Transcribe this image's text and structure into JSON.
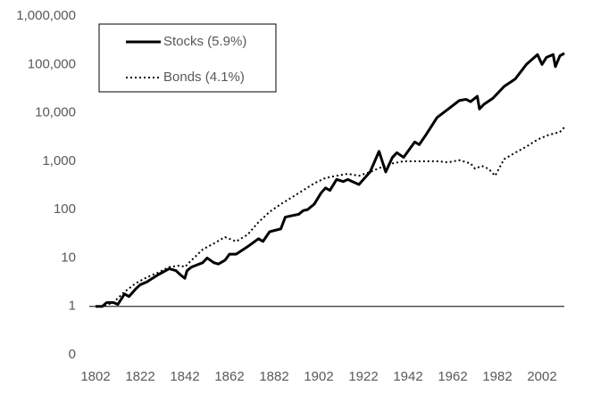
{
  "chart_data": {
    "type": "line",
    "log_scale": true,
    "xaxis_crosses": 1,
    "xlim": [
      1802,
      2012
    ],
    "xticks": [
      1802,
      1822,
      1842,
      1862,
      1882,
      1902,
      1922,
      1942,
      1962,
      1982,
      2002
    ],
    "ylim": [
      0.1,
      1000000
    ],
    "yticks": [
      {
        "value": 0.1,
        "label": "0"
      },
      1,
      10,
      100,
      {
        "value": 1000,
        "label": "1,000"
      },
      {
        "value": 10000,
        "label": "10,000"
      },
      {
        "value": 100000,
        "label": "100,000"
      },
      {
        "value": 1000000,
        "label": "1,000,000"
      }
    ],
    "series": [
      {
        "name": "Stocks (5.9%)",
        "color": "#000000",
        "style": "solid",
        "x": [
          1802,
          1805,
          1807,
          1810,
          1812,
          1815,
          1817,
          1820,
          1822,
          1825,
          1830,
          1835,
          1838,
          1840,
          1842,
          1843,
          1845,
          1850,
          1852,
          1855,
          1857,
          1860,
          1862,
          1865,
          1870,
          1875,
          1877,
          1880,
          1885,
          1887,
          1890,
          1893,
          1895,
          1897,
          1900,
          1903,
          1905,
          1907,
          1910,
          1913,
          1915,
          1917,
          1920,
          1922,
          1925,
          1929,
          1932,
          1935,
          1937,
          1940,
          1945,
          1947,
          1950,
          1955,
          1960,
          1965,
          1968,
          1970,
          1973,
          1974,
          1976,
          1980,
          1985,
          1990,
          1995,
          2000,
          2002,
          2004,
          2007,
          2008,
          2010,
          2012
        ],
        "values": [
          1,
          1,
          1.2,
          1.2,
          1.1,
          1.8,
          1.6,
          2.3,
          2.8,
          3.2,
          4.5,
          6,
          5.5,
          4.5,
          3.8,
          5.5,
          6.5,
          8,
          10,
          8,
          7.5,
          9,
          12,
          12,
          17,
          25,
          22,
          35,
          40,
          70,
          75,
          80,
          95,
          100,
          130,
          220,
          280,
          250,
          420,
          380,
          420,
          380,
          330,
          420,
          600,
          1600,
          600,
          1200,
          1500,
          1200,
          2500,
          2200,
          3500,
          8000,
          12000,
          18000,
          19000,
          17000,
          22000,
          12000,
          15000,
          20000,
          35000,
          50000,
          100000,
          160000,
          100000,
          140000,
          160000,
          90000,
          150000,
          170000
        ]
      },
      {
        "name": "Bonds (4.1%)",
        "color": "#000000",
        "style": "dotted",
        "x": [
          1802,
          1805,
          1810,
          1815,
          1820,
          1825,
          1830,
          1835,
          1840,
          1842,
          1845,
          1850,
          1855,
          1860,
          1865,
          1870,
          1875,
          1880,
          1885,
          1890,
          1895,
          1900,
          1905,
          1910,
          1915,
          1920,
          1925,
          1930,
          1935,
          1940,
          1945,
          1950,
          1955,
          1960,
          1965,
          1970,
          1972,
          1975,
          1978,
          1981,
          1985,
          1990,
          1995,
          2000,
          2005,
          2010,
          2012
        ],
        "values": [
          1,
          1,
          1.2,
          2,
          3,
          4,
          5,
          6.5,
          7,
          6.5,
          9,
          15,
          20,
          27,
          22,
          30,
          55,
          90,
          130,
          180,
          250,
          350,
          450,
          500,
          550,
          500,
          600,
          750,
          900,
          1000,
          1000,
          1000,
          1000,
          950,
          1050,
          900,
          700,
          800,
          700,
          500,
          1100,
          1500,
          2000,
          2800,
          3500,
          4000,
          5000
        ]
      }
    ]
  }
}
